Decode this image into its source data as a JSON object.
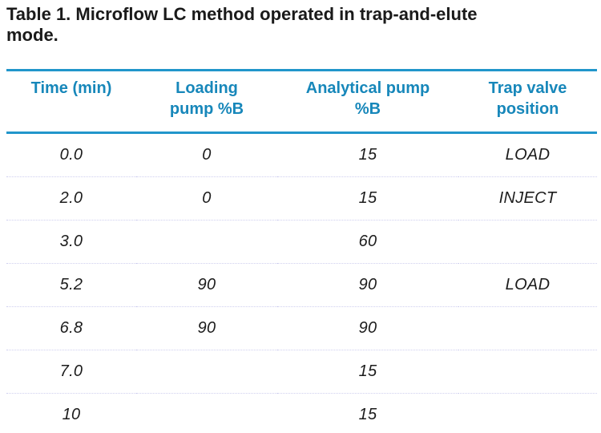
{
  "title": {
    "lines": [
      "Table 1. Microflow LC method operated in trap-and-elute",
      "mode."
    ]
  },
  "table": {
    "columns": [
      {
        "lines": [
          "Time (min)",
          ""
        ]
      },
      {
        "lines": [
          "Loading",
          "pump %B"
        ]
      },
      {
        "lines": [
          "Analytical pump",
          "%B"
        ]
      },
      {
        "lines": [
          "Trap valve",
          "position"
        ]
      }
    ],
    "rows": [
      {
        "time": "0.0",
        "loading": "0",
        "analytical": "15",
        "valve": "LOAD"
      },
      {
        "time": "2.0",
        "loading": "0",
        "analytical": "15",
        "valve": "INJECT"
      },
      {
        "time": "3.0",
        "loading": "",
        "analytical": "60",
        "valve": ""
      },
      {
        "time": "5.2",
        "loading": "90",
        "analytical": "90",
        "valve": "LOAD"
      },
      {
        "time": "6.8",
        "loading": "90",
        "analytical": "90",
        "valve": ""
      },
      {
        "time": "7.0",
        "loading": "",
        "analytical": "15",
        "valve": ""
      },
      {
        "time": "10",
        "loading": "",
        "analytical": "15",
        "valve": ""
      }
    ]
  },
  "colors": {
    "rule_blue": "#2196cb",
    "header_text_blue": "#1787ba",
    "row_separator": "#cfcfef",
    "body_text": "#1c1c1c"
  }
}
